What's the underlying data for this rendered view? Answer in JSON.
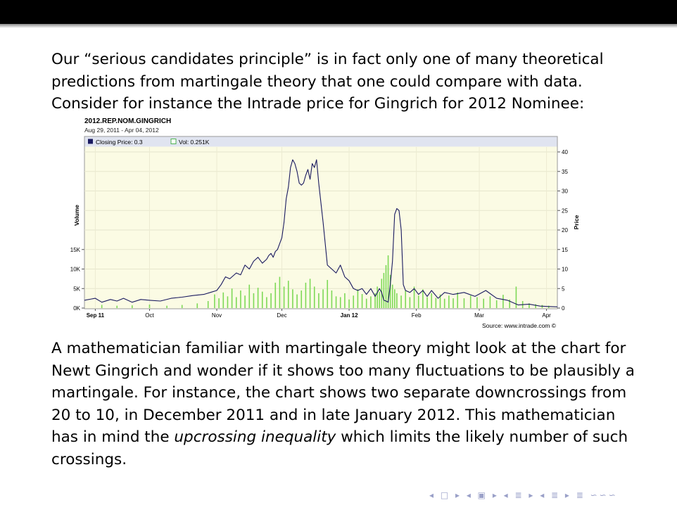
{
  "paragraphs": {
    "p1": "Our “serious candidates principle” is in fact only one of many theoretical predictions from martingale theory that one could compare with data. Consider for instance the Intrade price for Gingrich for 2012 Nominee:",
    "p2_before": "A mathematician familiar with martingale theory might look at the chart for Newt Gingrich and wonder if it shows too many fluctuations to be plausibly a martingale. For instance, the chart shows two separate downcrossings from 20 to 10, in December 2011 and in late January 2012. This mathematician has in mind the ",
    "p2_em": "upcrossing inequality",
    "p2_after": " which limits the likely number of such crossings."
  },
  "navigation": {
    "symbols": "◂ □ ▸ ◂ ▣ ▸ ◂ ≣ ▸ ◂ ≣ ▸   ≣   ∽∽∽"
  },
  "chart_data": {
    "type": "line",
    "title": "2012.REP.NOM.GINGRICH",
    "subtitle": "Aug 29, 2011 - Apr 04, 2012",
    "legend": [
      {
        "label": "Closing Price: 0.3",
        "color": "#1a1a60"
      },
      {
        "label": "Vol: 0.251K",
        "color": "#7ed957"
      }
    ],
    "legend_position": "top-left",
    "x_ticks": [
      "Sep 11",
      "Oct",
      "Nov",
      "Dec",
      "Jan 12",
      "Feb",
      "Mar",
      "Apr"
    ],
    "x_ticks_bold": [
      "Sep 11",
      "Jan 12"
    ],
    "xlim": [
      0,
      218
    ],
    "x_tick_positions": [
      5,
      30,
      61,
      91,
      122,
      153,
      182,
      213
    ],
    "ylabel_left": "Volume",
    "ylabel_right": "Price",
    "ylim_right": [
      0,
      40
    ],
    "right_ticks": [
      0,
      5,
      10,
      15,
      20,
      25,
      30,
      35,
      40
    ],
    "ylim_left": [
      0,
      40000
    ],
    "left_ticks": [
      "0K",
      "5K",
      "10K",
      "15K"
    ],
    "left_tick_values": [
      0,
      5000,
      10000,
      15000
    ],
    "grid": true,
    "source": "Source: www.intrade.com ©",
    "price_series": {
      "name": "Closing Price",
      "color": "#1a1a60",
      "x": [
        0,
        5,
        8,
        12,
        15,
        18,
        22,
        26,
        30,
        35,
        40,
        45,
        50,
        55,
        58,
        61,
        63,
        65,
        67,
        70,
        72,
        74,
        76,
        78,
        80,
        82,
        84,
        85,
        86,
        87,
        88,
        89,
        90,
        91,
        92,
        93,
        94,
        95,
        96,
        97,
        98,
        99,
        100,
        101,
        102,
        103,
        104,
        105,
        106,
        107,
        108,
        110,
        112,
        114,
        116,
        118,
        120,
        122,
        124,
        126,
        128,
        130,
        132,
        134,
        136,
        137,
        138,
        139,
        140,
        141,
        142,
        143,
        144,
        145,
        146,
        147,
        148,
        150,
        152,
        154,
        156,
        158,
        160,
        163,
        166,
        170,
        175,
        180,
        185,
        190,
        195,
        200,
        205,
        210,
        214,
        218
      ],
      "y": [
        2,
        2.5,
        1.5,
        2.2,
        1.8,
        2.5,
        1.5,
        2.2,
        2,
        1.8,
        2.5,
        2.8,
        3.2,
        3.5,
        4,
        4.5,
        6,
        8,
        7.5,
        9,
        8.5,
        11,
        10,
        12,
        13,
        11.5,
        12.5,
        13.5,
        14,
        13,
        14.5,
        15,
        16.5,
        18,
        22,
        28,
        31,
        36,
        38,
        37,
        35,
        32,
        31.5,
        32,
        34,
        35.5,
        33,
        37,
        36,
        38,
        32,
        22,
        11,
        10,
        9,
        11,
        8,
        7,
        5,
        4.5,
        5,
        3.5,
        5,
        3,
        5,
        4,
        2,
        1.8,
        1.5,
        6,
        12,
        24,
        25.5,
        25,
        20,
        6,
        4.5,
        4,
        5,
        3.5,
        4.5,
        3,
        4.5,
        2.5,
        4,
        3.5,
        4,
        3,
        4.5,
        2.5,
        2,
        0.8,
        1,
        0.5,
        0.4,
        0.3
      ]
    },
    "volume_series": {
      "name": "Vol",
      "color": "#7ed957",
      "x": [
        8,
        15,
        22,
        30,
        38,
        45,
        52,
        57,
        60,
        62,
        64,
        66,
        68,
        70,
        72,
        74,
        76,
        78,
        80,
        82,
        84,
        86,
        88,
        90,
        92,
        94,
        96,
        98,
        100,
        102,
        104,
        106,
        108,
        110,
        112,
        114,
        116,
        118,
        120,
        122,
        124,
        126,
        128,
        130,
        132,
        134,
        135,
        136,
        137,
        138,
        139,
        140,
        141,
        142,
        143,
        144,
        146,
        148,
        150,
        152,
        154,
        156,
        158,
        160,
        162,
        164,
        166,
        168,
        170,
        172,
        175,
        178,
        181,
        184,
        187,
        190,
        193,
        196,
        199,
        202,
        205,
        208,
        211,
        214
      ],
      "y": [
        800,
        600,
        700,
        900,
        600,
        800,
        1200,
        1800,
        3500,
        2500,
        4000,
        3000,
        5000,
        2800,
        4500,
        3200,
        6000,
        3800,
        5200,
        4200,
        2800,
        3800,
        6500,
        8000,
        5500,
        7000,
        4800,
        3500,
        4500,
        6500,
        7500,
        5500,
        3800,
        4800,
        7200,
        4500,
        3000,
        2800,
        3800,
        2200,
        3200,
        4800,
        3600,
        2400,
        3000,
        3800,
        5500,
        4200,
        7500,
        9000,
        11000,
        13500,
        8500,
        6000,
        4800,
        3800,
        3200,
        4500,
        2800,
        5500,
        3200,
        4800,
        2800,
        3800,
        2600,
        3500,
        2400,
        3200,
        2500,
        4000,
        2500,
        3200,
        2800,
        2400,
        3000,
        2000,
        3400,
        2200,
        5500,
        1800,
        1200,
        1000,
        800,
        600
      ]
    }
  }
}
